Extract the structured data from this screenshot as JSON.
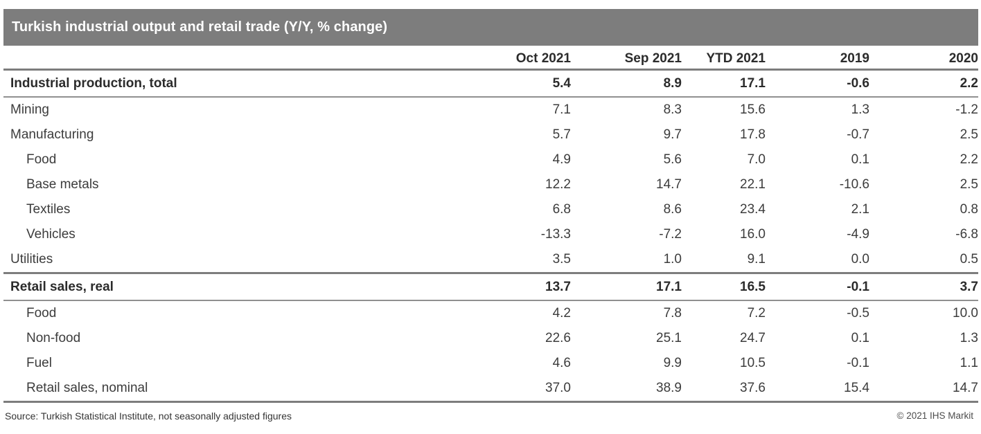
{
  "chart_data": {
    "type": "table",
    "title": "Turkish industrial output and retail trade (Y/Y, % change)",
    "columns": [
      "Oct 2021",
      "Sep 2021",
      "YTD 2021",
      "2019",
      "2020"
    ],
    "rows": [
      {
        "label": "Industrial production, total",
        "section": true,
        "indent": 0,
        "values": [
          "5.4",
          "8.9",
          "17.1",
          "-0.6",
          "2.2"
        ]
      },
      {
        "label": "Mining",
        "section": false,
        "indent": 0,
        "values": [
          "7.1",
          "8.3",
          "15.6",
          "1.3",
          "-1.2"
        ]
      },
      {
        "label": "Manufacturing",
        "section": false,
        "indent": 0,
        "values": [
          "5.7",
          "9.7",
          "17.8",
          "-0.7",
          "2.5"
        ]
      },
      {
        "label": "Food",
        "section": false,
        "indent": 1,
        "values": [
          "4.9",
          "5.6",
          "7.0",
          "0.1",
          "2.2"
        ]
      },
      {
        "label": "Base metals",
        "section": false,
        "indent": 1,
        "values": [
          "12.2",
          "14.7",
          "22.1",
          "-10.6",
          "2.5"
        ]
      },
      {
        "label": "Textiles",
        "section": false,
        "indent": 1,
        "values": [
          "6.8",
          "8.6",
          "23.4",
          "2.1",
          "0.8"
        ]
      },
      {
        "label": "Vehicles",
        "section": false,
        "indent": 1,
        "values": [
          "-13.3",
          "-7.2",
          "16.0",
          "-4.9",
          "-6.8"
        ]
      },
      {
        "label": "Utilities",
        "section": false,
        "indent": 0,
        "values": [
          "3.5",
          "1.0",
          "9.1",
          "0.0",
          "0.5"
        ]
      },
      {
        "label": "Retail sales, real",
        "section": true,
        "indent": 0,
        "values": [
          "13.7",
          "17.1",
          "16.5",
          "-0.1",
          "3.7"
        ]
      },
      {
        "label": "Food",
        "section": false,
        "indent": 1,
        "values": [
          "4.2",
          "7.8",
          "7.2",
          "-0.5",
          "10.0"
        ]
      },
      {
        "label": "Non-food",
        "section": false,
        "indent": 1,
        "values": [
          "22.6",
          "25.1",
          "24.7",
          "0.1",
          "1.3"
        ]
      },
      {
        "label": "Fuel",
        "section": false,
        "indent": 1,
        "values": [
          "4.6",
          "9.9",
          "10.5",
          "-0.1",
          "1.1"
        ]
      },
      {
        "label": "Retail sales, nominal",
        "section": false,
        "indent": 1,
        "values": [
          "37.0",
          "38.9",
          "37.6",
          "15.4",
          "14.7"
        ]
      }
    ]
  },
  "footer": {
    "source": "Source: Turkish Statistical Institute, not seasonally adjusted figures",
    "copyright": "© 2021 IHS Markit"
  },
  "colors": {
    "header_bar": "#7d7d7d",
    "rule_thick": "#7d7d7d",
    "rule_thin": "#909090",
    "title_text": "#ffffff",
    "body_text": "#3c3c3c",
    "bold_text": "#2b2b2b"
  }
}
